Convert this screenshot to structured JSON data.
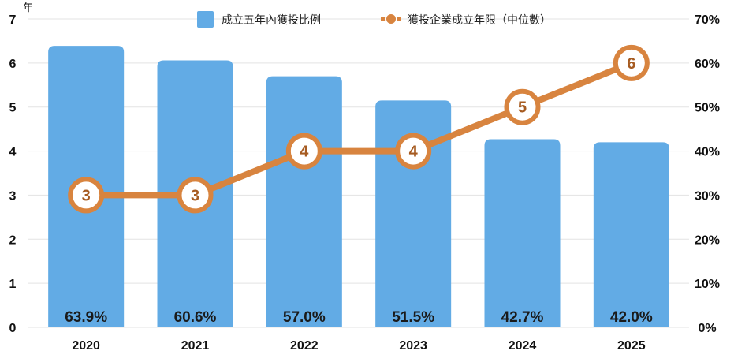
{
  "chart_data": {
    "type": "bar",
    "left_unit": "年",
    "categories": [
      "2020",
      "2021",
      "2022",
      "2023",
      "2024",
      "2025"
    ],
    "series": [
      {
        "name": "成立五年內獲投比例",
        "type": "bar",
        "axis": "right",
        "values": [
          63.9,
          60.6,
          57.0,
          51.5,
          42.7,
          42.0
        ],
        "labels": [
          "63.9%",
          "60.6%",
          "57.0%",
          "51.5%",
          "42.7%",
          "42.0%"
        ]
      },
      {
        "name": "獲投企業成立年限（中位數）",
        "type": "line",
        "axis": "left",
        "values": [
          3,
          3,
          4,
          4,
          5,
          6
        ],
        "labels": [
          "3",
          "3",
          "4",
          "4",
          "5",
          "6"
        ]
      }
    ],
    "y_left": {
      "range": [
        0,
        7
      ],
      "ticks": [
        "0",
        "1",
        "2",
        "3",
        "4",
        "5",
        "6",
        "7"
      ]
    },
    "y_right": {
      "range": [
        0,
        70
      ],
      "ticks": [
        "0%",
        "10%",
        "20%",
        "30%",
        "40%",
        "50%",
        "60%",
        "70%"
      ]
    },
    "grid": true,
    "legend_position": "top-center",
    "colors": {
      "bar": "#62ABE5",
      "line": "#D8843F",
      "grid": "#E3E3E3"
    }
  }
}
